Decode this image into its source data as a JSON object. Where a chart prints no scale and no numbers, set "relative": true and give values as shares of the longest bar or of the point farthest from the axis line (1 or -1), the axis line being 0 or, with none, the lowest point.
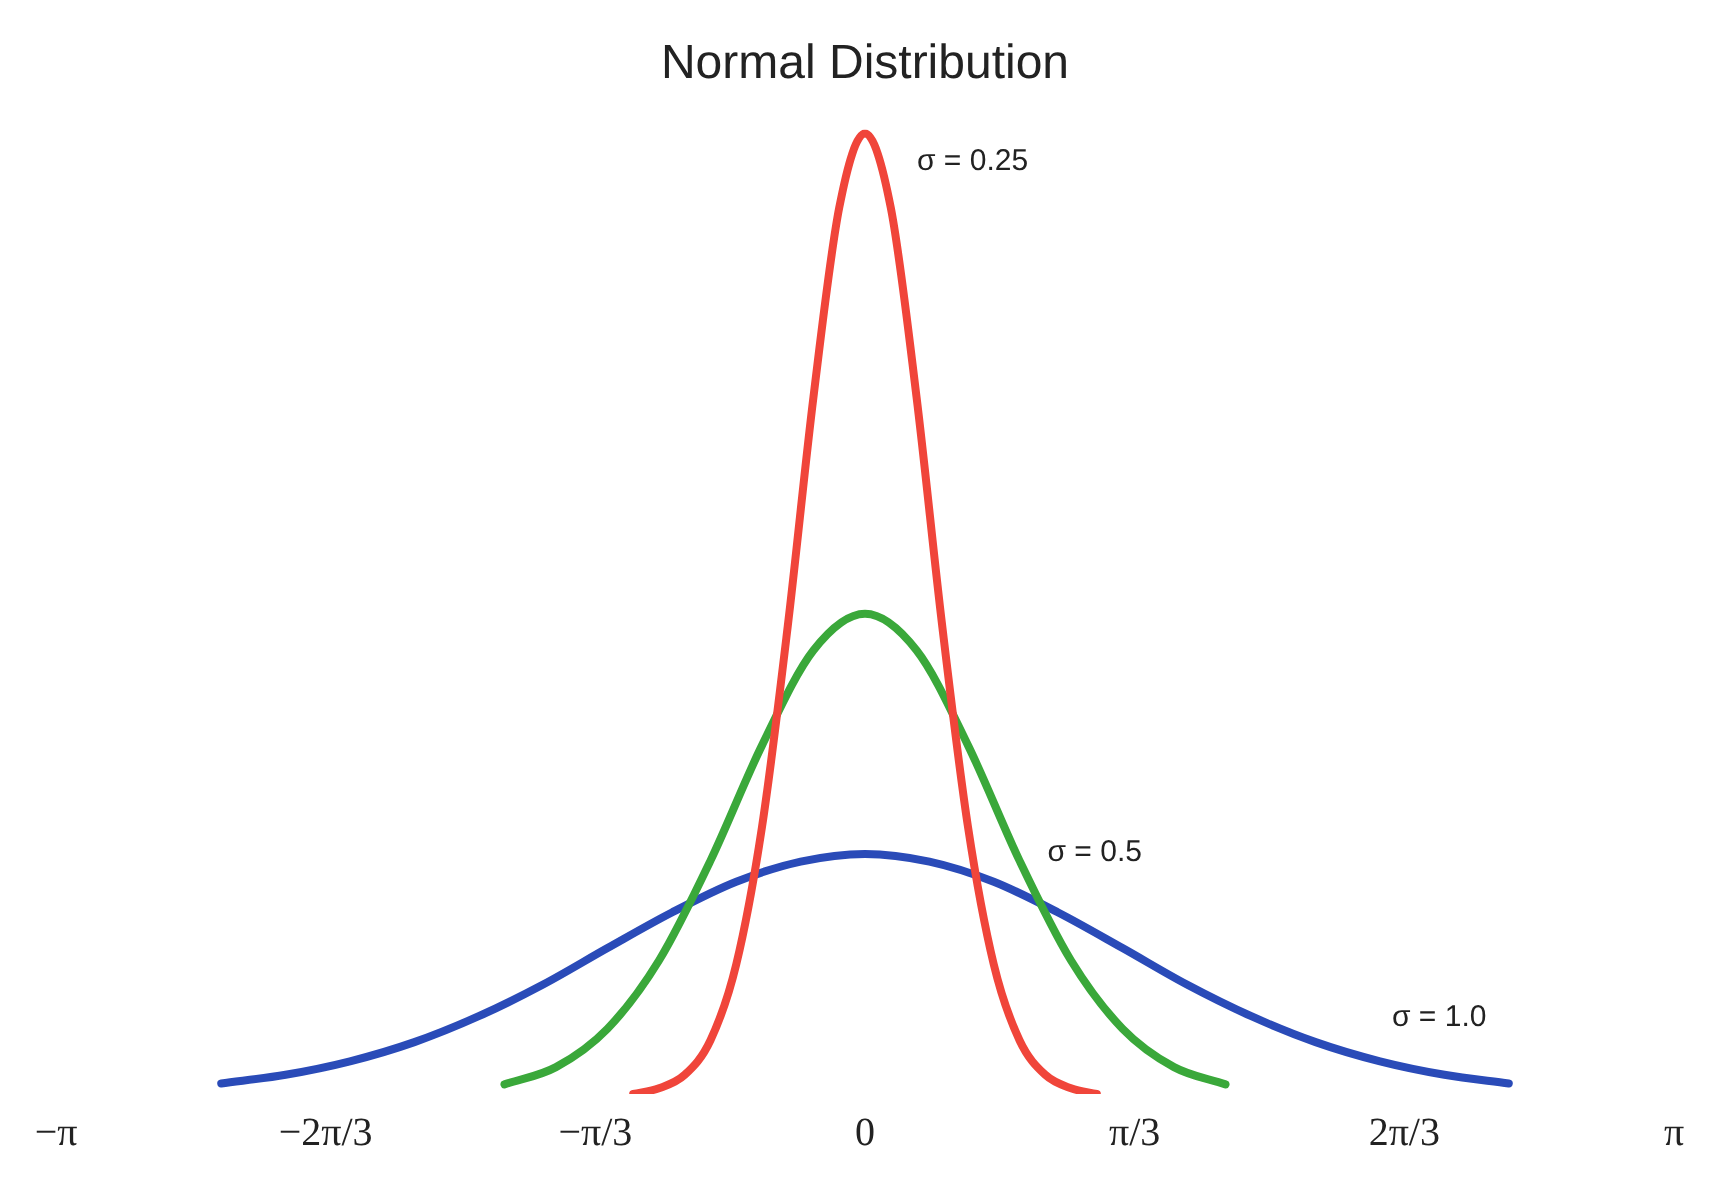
{
  "chart_data": {
    "type": "line",
    "title": "Normal Distribution",
    "relative": true,
    "xlim": [
      -3.1416,
      3.1416
    ],
    "xticks": [
      {
        "value": -3.1416,
        "label": "−π"
      },
      {
        "value": -2.0944,
        "label": "−2π/3"
      },
      {
        "value": -1.0472,
        "label": "−π/3"
      },
      0,
      {
        "value": 1.0472,
        "label": "π/3"
      },
      {
        "value": 2.0944,
        "label": "2π/3"
      },
      {
        "value": 3.1416,
        "label": "π"
      }
    ],
    "tick_labels": "x",
    "grid": false,
    "legend": false,
    "marker": "none",
    "line_style": "solid",
    "series": [
      {
        "name": "σ = 0.25",
        "color": "#f0453a",
        "x": [
          -0.9,
          -0.8,
          -0.7,
          -0.6,
          -0.5,
          -0.4,
          -0.3,
          -0.2,
          -0.1,
          0,
          0.1,
          0.2,
          0.3,
          0.4,
          0.5,
          0.6,
          0.7,
          0.8,
          0.9
        ],
        "values": [
          0,
          0.006,
          0.02,
          0.056,
          0.135,
          0.278,
          0.487,
          0.726,
          0.923,
          1,
          0.923,
          0.726,
          0.487,
          0.278,
          0.135,
          0.056,
          0.02,
          0.006,
          0
        ]
      },
      {
        "name": "σ = 0.5",
        "color": "#3aa83a",
        "x": [
          -1.4,
          -1.2,
          -1.0,
          -0.8,
          -0.6,
          -0.4,
          -0.2,
          0,
          0.2,
          0.4,
          0.6,
          0.8,
          1.0,
          1.2,
          1.4
        ],
        "values": [
          0.01,
          0.028,
          0.068,
          0.139,
          0.243,
          0.363,
          0.462,
          0.5,
          0.462,
          0.363,
          0.243,
          0.139,
          0.068,
          0.028,
          0.01
        ]
      },
      {
        "name": "σ = 1.0",
        "color": "#2a4bb8",
        "x": [
          -2.5,
          -2.25,
          -2.0,
          -1.75,
          -1.5,
          -1.25,
          -1.0,
          -0.75,
          -0.5,
          -0.25,
          0,
          0.25,
          0.5,
          0.75,
          1.0,
          1.25,
          1.5,
          1.75,
          2.0,
          2.25,
          2.5
        ],
        "values": [
          0.011,
          0.02,
          0.034,
          0.054,
          0.081,
          0.114,
          0.152,
          0.189,
          0.221,
          0.242,
          0.25,
          0.242,
          0.221,
          0.189,
          0.152,
          0.114,
          0.081,
          0.054,
          0.034,
          0.02,
          0.011
        ]
      }
    ]
  }
}
